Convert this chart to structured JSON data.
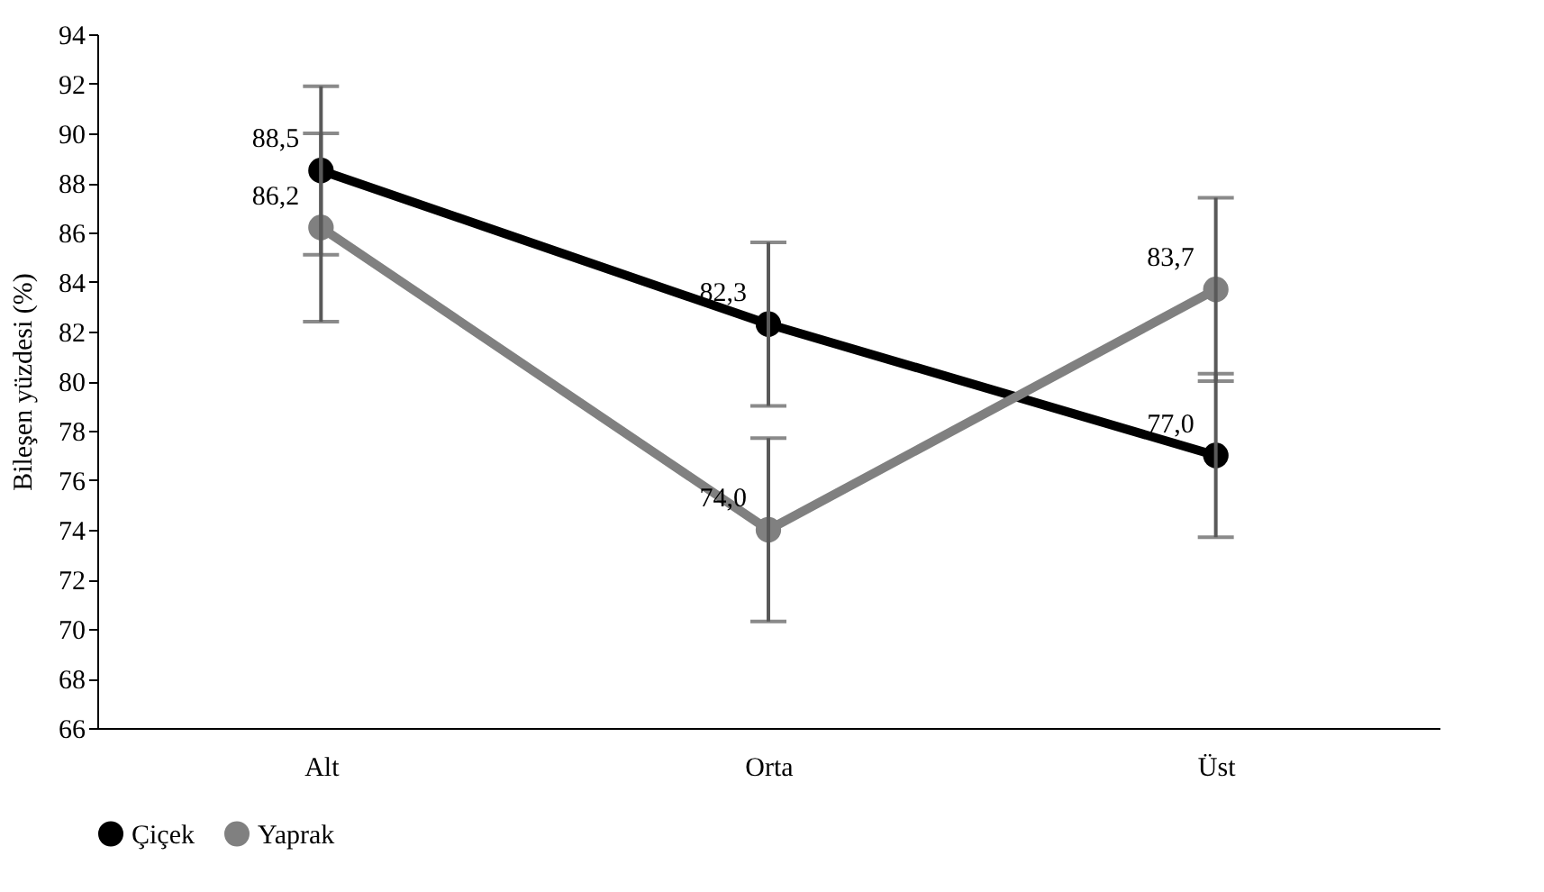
{
  "chart_data": {
    "type": "line",
    "ylabel": "Bileşen yüzdesi (%)",
    "categories": [
      "Alt",
      "Orta",
      "Üst"
    ],
    "ylim": [
      66,
      94
    ],
    "yticks": [
      66,
      68,
      70,
      72,
      74,
      76,
      78,
      80,
      82,
      84,
      86,
      88,
      90,
      92,
      94
    ],
    "grid": false,
    "legend": "bottom",
    "marker": "circle",
    "line_style": "solid",
    "series": [
      {
        "name": "Çiçek",
        "color": "#000000",
        "values": [
          88.5,
          82.3,
          77.0
        ],
        "errors": [
          3.4,
          3.3,
          3.3
        ],
        "value_labels": [
          "88,5",
          "82,3",
          "77,0"
        ]
      },
      {
        "name": "Yaprak",
        "color": "#808080",
        "values": [
          86.2,
          74.0,
          83.7
        ],
        "errors": [
          3.8,
          3.7,
          3.7
        ],
        "value_labels": [
          "86,2",
          "74,0",
          "83,7"
        ]
      }
    ]
  }
}
